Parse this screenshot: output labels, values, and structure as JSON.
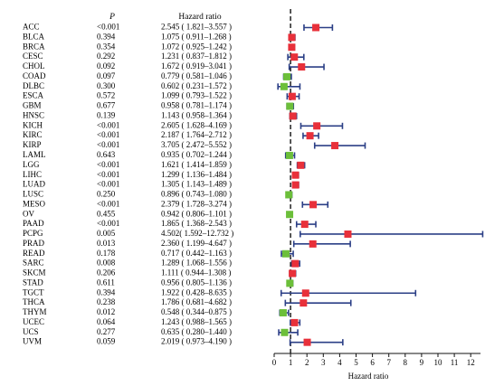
{
  "chart_data": {
    "type": "forest",
    "columns": {
      "cancer": "",
      "p": "P",
      "hr": "Hazard ratio"
    },
    "xlabel": "Hazard ratio",
    "xlim": [
      0,
      12.6
    ],
    "xticks": [
      0,
      1,
      2,
      3,
      4,
      5,
      6,
      7,
      8,
      9,
      10,
      11,
      12
    ],
    "reference_line": 1,
    "colors": {
      "risk": "#e8303a",
      "protective": "#6cbf3a",
      "ci": "#2b3f86",
      "text": "#000000"
    },
    "rows": [
      {
        "cancer": "ACC",
        "p": "<0.001",
        "hr_text": "2.545 ( 1.821–3.557 )",
        "hr": 2.545,
        "lo": 1.821,
        "hi": 3.557
      },
      {
        "cancer": "BLCA",
        "p": "0.394",
        "hr_text": "1.075 ( 0.911–1.268 )",
        "hr": 1.075,
        "lo": 0.911,
        "hi": 1.268
      },
      {
        "cancer": "BRCA",
        "p": "0.354",
        "hr_text": "1.072 ( 0.925–1.242 )",
        "hr": 1.072,
        "lo": 0.925,
        "hi": 1.242
      },
      {
        "cancer": "CESC",
        "p": "0.292",
        "hr_text": "1.231 ( 0.837–1.812 )",
        "hr": 1.231,
        "lo": 0.837,
        "hi": 1.812
      },
      {
        "cancer": "CHOL",
        "p": "0.092",
        "hr_text": "1.672 ( 0.919–3.041 )",
        "hr": 1.672,
        "lo": 0.919,
        "hi": 3.041
      },
      {
        "cancer": "COAD",
        "p": "0.097",
        "hr_text": "0.779 ( 0.581–1.046 )",
        "hr": 0.779,
        "lo": 0.581,
        "hi": 1.046
      },
      {
        "cancer": "DLBC",
        "p": "0.300",
        "hr_text": "0.602 ( 0.231–1.572 )",
        "hr": 0.602,
        "lo": 0.231,
        "hi": 1.572
      },
      {
        "cancer": "ESCA",
        "p": "0.572",
        "hr_text": "1.099 ( 0.793–1.522 )",
        "hr": 1.099,
        "lo": 0.793,
        "hi": 1.522
      },
      {
        "cancer": "GBM",
        "p": "0.677",
        "hr_text": "0.958 ( 0.781–1.174 )",
        "hr": 0.958,
        "lo": 0.781,
        "hi": 1.174
      },
      {
        "cancer": "HNSC",
        "p": "0.139",
        "hr_text": "1.143 ( 0.958–1.364 )",
        "hr": 1.143,
        "lo": 0.958,
        "hi": 1.364
      },
      {
        "cancer": "KICH",
        "p": "<0.001",
        "hr_text": "2.605 ( 1.628–4.169 )",
        "hr": 2.605,
        "lo": 1.628,
        "hi": 4.169
      },
      {
        "cancer": "KIRC",
        "p": "<0.001",
        "hr_text": "2.187 ( 1.764–2.712 )",
        "hr": 2.187,
        "lo": 1.764,
        "hi": 2.712
      },
      {
        "cancer": "KIRP",
        "p": "<0.001",
        "hr_text": "3.705 ( 2.472–5.552 )",
        "hr": 3.705,
        "lo": 2.472,
        "hi": 5.552
      },
      {
        "cancer": "LAML",
        "p": "0.643",
        "hr_text": "0.935 ( 0.702–1.244 )",
        "hr": 0.935,
        "lo": 0.702,
        "hi": 1.244
      },
      {
        "cancer": "LGG",
        "p": "<0.001",
        "hr_text": "1.621 ( 1.414–1.859 )",
        "hr": 1.621,
        "lo": 1.414,
        "hi": 1.859
      },
      {
        "cancer": "LIHC",
        "p": "<0.001",
        "hr_text": "1.299 ( 1.136–1.484 )",
        "hr": 1.299,
        "lo": 1.136,
        "hi": 1.484
      },
      {
        "cancer": "LUAD",
        "p": "<0.001",
        "hr_text": "1.305 ( 1.143–1.489 )",
        "hr": 1.305,
        "lo": 1.143,
        "hi": 1.489
      },
      {
        "cancer": "LUSC",
        "p": "0.250",
        "hr_text": "0.896 ( 0.743–1.080 )",
        "hr": 0.896,
        "lo": 0.743,
        "hi": 1.08
      },
      {
        "cancer": "MESO",
        "p": "<0.001",
        "hr_text": "2.379 ( 1.728–3.274 )",
        "hr": 2.379,
        "lo": 1.728,
        "hi": 3.274
      },
      {
        "cancer": "OV",
        "p": "0.455",
        "hr_text": "0.942 ( 0.806–1.101 )",
        "hr": 0.942,
        "lo": 0.806,
        "hi": 1.101
      },
      {
        "cancer": "PAAD",
        "p": "<0.001",
        "hr_text": "1.865 ( 1.368–2.543 )",
        "hr": 1.865,
        "lo": 1.368,
        "hi": 2.543
      },
      {
        "cancer": "PCPG",
        "p": "0.005",
        "hr_text": "4.502( 1.592–12.732 )",
        "hr": 4.502,
        "lo": 1.592,
        "hi": 12.732
      },
      {
        "cancer": "PRAD",
        "p": "0.013",
        "hr_text": "2.360 ( 1.199–4.647 )",
        "hr": 2.36,
        "lo": 1.199,
        "hi": 4.647
      },
      {
        "cancer": "READ",
        "p": "0.178",
        "hr_text": "0.717 ( 0.442–1.163 )",
        "hr": 0.717,
        "lo": 0.442,
        "hi": 1.163
      },
      {
        "cancer": "SARC",
        "p": "0.008",
        "hr_text": "1.289 ( 1.068–1.556 )",
        "hr": 1.289,
        "lo": 1.068,
        "hi": 1.556
      },
      {
        "cancer": "SKCM",
        "p": "0.206",
        "hr_text": "1.111 ( 0.944–1.308 )",
        "hr": 1.111,
        "lo": 0.944,
        "hi": 1.308
      },
      {
        "cancer": "STAD",
        "p": "0.611",
        "hr_text": "0.956 ( 0.805–1.136 )",
        "hr": 0.956,
        "lo": 0.805,
        "hi": 1.136
      },
      {
        "cancer": "TGCT",
        "p": "0.394",
        "hr_text": "1.922 ( 0.428–8.635 )",
        "hr": 1.922,
        "lo": 0.428,
        "hi": 8.635
      },
      {
        "cancer": "THCA",
        "p": "0.238",
        "hr_text": "1.786 ( 0.681–4.682 )",
        "hr": 1.786,
        "lo": 0.681,
        "hi": 4.682
      },
      {
        "cancer": "THYM",
        "p": "0.012",
        "hr_text": "0.548 ( 0.344–0.875 )",
        "hr": 0.548,
        "lo": 0.344,
        "hi": 0.875
      },
      {
        "cancer": "UCEC",
        "p": "0.064",
        "hr_text": "1.243 ( 0.988–1.565 )",
        "hr": 1.243,
        "lo": 0.988,
        "hi": 1.565
      },
      {
        "cancer": "UCS",
        "p": "0.277",
        "hr_text": "0.635 ( 0.280–1.440 )",
        "hr": 0.635,
        "lo": 0.28,
        "hi": 1.44
      },
      {
        "cancer": "UVM",
        "p": "0.059",
        "hr_text": "2.019 ( 0.973–4.190 )",
        "hr": 2.019,
        "lo": 0.973,
        "hi": 4.19
      }
    ]
  }
}
